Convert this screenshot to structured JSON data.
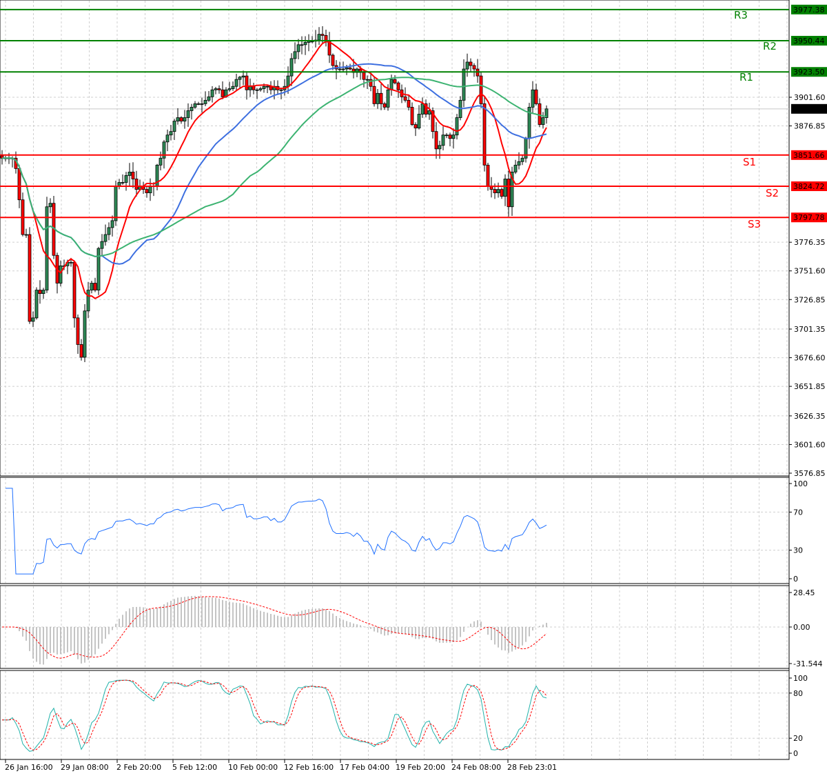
{
  "chart_data": [
    {
      "type": "candlestick",
      "pane": "price",
      "timeframe_note": "",
      "closes": [
        3849,
        3849,
        3849,
        3849,
        3840,
        3813,
        3783,
        3783,
        3708,
        3711,
        3735,
        3732,
        3735,
        3807,
        3810,
        3765,
        3741,
        3756,
        3756,
        3759,
        3759,
        3711,
        3688,
        3677,
        3717,
        3735,
        3741,
        3735,
        3771,
        3777,
        3783,
        3789,
        3795,
        3825,
        3828,
        3828,
        3834,
        3837,
        3831,
        3822,
        3825,
        3822,
        3819,
        3825,
        3825,
        3843,
        3849,
        3863,
        3869,
        3872,
        3881,
        3884,
        3881,
        3884,
        3890,
        3893,
        3896,
        3896,
        3896,
        3899,
        3902,
        3908,
        3909,
        3908,
        3902,
        3908,
        3909,
        3911,
        3917,
        3919,
        3920,
        3908,
        3911,
        3908,
        3908,
        3909,
        3911,
        3911,
        3908,
        3911,
        3908,
        3908,
        3911,
        3920,
        3935,
        3941,
        3947,
        3947,
        3949,
        3950,
        3950,
        3951,
        3956,
        3955,
        3950,
        3938,
        3929,
        3926,
        3926,
        3926,
        3927,
        3926,
        3923,
        3926,
        3923,
        3917,
        3917,
        3911,
        3896,
        3905,
        3896,
        3893,
        3908,
        3917,
        3914,
        3908,
        3902,
        3899,
        3893,
        3878,
        3875,
        3887,
        3896,
        3887,
        3890,
        3872,
        3857,
        3860,
        3869,
        3869,
        3866,
        3869,
        3884,
        3899,
        3926,
        3932,
        3929,
        3926,
        3920,
        3896,
        3843,
        3825,
        3822,
        3819,
        3822,
        3816,
        3831,
        3807,
        3837,
        3843,
        3846,
        3849,
        3866,
        3893,
        3908,
        3896,
        3878,
        3884,
        3891.58
      ],
      "moving_averages": [
        {
          "color": "#ff0000",
          "period": 10
        },
        {
          "color": "#3d6fe0",
          "period": 30
        },
        {
          "color": "#3cb371",
          "period": 60
        }
      ],
      "y_ticks": [
        "3901.60",
        "3876.85",
        "3776.35",
        "3751.60",
        "3726.85",
        "3701.35",
        "3676.60",
        "3651.85",
        "3626.35",
        "3601.60",
        "3576.85"
      ],
      "y_tick_values": [
        3901.6,
        3876.85,
        3776.35,
        3751.6,
        3726.85,
        3701.35,
        3676.6,
        3651.85,
        3626.35,
        3601.6,
        3576.85
      ],
      "ylim": [
        3576.85,
        3985
      ],
      "current_price": {
        "label": "3891.58",
        "value": 3891.58
      },
      "levels": [
        {
          "name": "R3",
          "label": "3977.38",
          "value": 3977.38,
          "color": "#008000"
        },
        {
          "name": "R2",
          "label": "3950.44",
          "value": 3950.44,
          "color": "#008000"
        },
        {
          "name": "R1",
          "label": "3923.50",
          "value": 3923.5,
          "color": "#008000"
        },
        {
          "name": "S1",
          "label": "3851.66",
          "value": 3851.66,
          "color": "#ff0000"
        },
        {
          "name": "S2",
          "label": "3824.72",
          "value": 3824.72,
          "color": "#ff0000"
        },
        {
          "name": "S3",
          "label": "3797.78",
          "value": 3797.78,
          "color": "#ff0000"
        }
      ],
      "x_ticks": [
        "26 Jan 16:00",
        "29 Jan 08:00",
        "2 Feb 20:00",
        "5 Feb 12:00",
        "10 Feb 00:00",
        "12 Feb 16:00",
        "17 Feb 04:00",
        "19 Feb 20:00",
        "24 Feb 08:00",
        "28 Feb 23:01"
      ],
      "bull_color": "#2e8b57",
      "bear_color": "#ff0000",
      "grid": true
    },
    {
      "type": "line",
      "pane": "rsi",
      "color": "#1e6fff",
      "ylim": [
        0,
        100
      ],
      "y_ticks": [
        "100",
        "70",
        "30",
        "0"
      ],
      "y_tick_values": [
        100,
        70,
        30,
        0
      ]
    },
    {
      "type": "bar",
      "pane": "macd",
      "hist_color": "#b0b0b0",
      "signal_color": "#ff0000",
      "ylim": [
        -31.544,
        28.45
      ],
      "y_ticks": [
        "28.45",
        "0.00",
        "-31.544"
      ],
      "y_tick_values": [
        28.45,
        0,
        -31.544
      ]
    },
    {
      "type": "line",
      "pane": "stochastic",
      "main_color": "#20b2aa",
      "signal_color": "#ff0000",
      "ylim": [
        0,
        100
      ],
      "y_ticks": [
        "100",
        "80",
        "20",
        "0"
      ],
      "y_tick_values": [
        100,
        80,
        20,
        0
      ]
    }
  ]
}
